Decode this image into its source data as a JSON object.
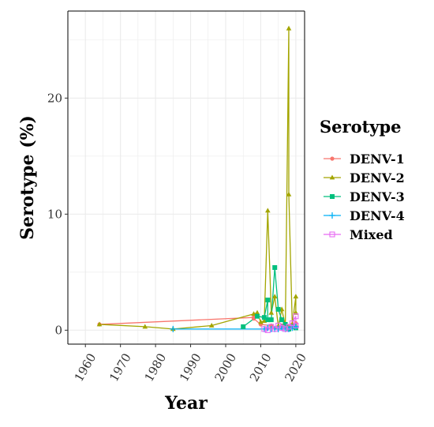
{
  "chart_data": {
    "type": "line",
    "xlabel": "Year",
    "ylabel": "Serotype (%)",
    "xlim": [
      1955,
      2022.5
    ],
    "ylim": [
      -1.2,
      27.5
    ],
    "x_ticks": [
      1960,
      1970,
      1980,
      1990,
      2000,
      2010,
      2020
    ],
    "y_ticks": [
      0,
      10,
      20
    ],
    "grid": true,
    "legend": {
      "title": "Serotype",
      "position": "right"
    },
    "series": [
      {
        "name": "DENV-1",
        "color": "#F8766D",
        "marker": "circle",
        "points": [
          [
            1964,
            0.5
          ],
          [
            2008,
            1.1
          ],
          [
            2008,
            1.0
          ],
          [
            2010,
            0.5
          ],
          [
            2013,
            0.4
          ],
          [
            2014,
            0.2
          ],
          [
            2015,
            0.3
          ],
          [
            2016,
            0.4
          ],
          [
            2017,
            0.3
          ],
          [
            2018,
            0.3
          ],
          [
            2019,
            0.5
          ],
          [
            2020,
            0.6
          ]
        ]
      },
      {
        "name": "DENV-2",
        "color": "#A3A500",
        "marker": "triangle",
        "points": [
          [
            1964,
            0.5
          ],
          [
            1977,
            0.3
          ],
          [
            1985,
            0.1
          ],
          [
            1996,
            0.4
          ],
          [
            2008,
            1.4
          ],
          [
            2009,
            1.5
          ],
          [
            2010,
            0.7
          ],
          [
            2011,
            0.8
          ],
          [
            2012,
            10.3
          ],
          [
            2013,
            1.5
          ],
          [
            2014,
            2.9
          ],
          [
            2015,
            0.3
          ],
          [
            2016,
            1.8
          ],
          [
            2017,
            0.4
          ],
          [
            2018,
            26.0
          ],
          [
            2018,
            11.7
          ],
          [
            2019,
            0.5
          ],
          [
            2020,
            2.9
          ],
          [
            2020,
            1.5
          ]
        ]
      },
      {
        "name": "DENV-3",
        "color": "#00BF7D",
        "marker": "square",
        "points": [
          [
            2005,
            0.3
          ],
          [
            2009,
            1.2
          ],
          [
            2011,
            1.1
          ],
          [
            2012,
            2.6
          ],
          [
            2012,
            0.9
          ],
          [
            2013,
            0.9
          ],
          [
            2014,
            5.4
          ],
          [
            2015,
            1.8
          ],
          [
            2016,
            0.9
          ],
          [
            2017,
            0.5
          ],
          [
            2018,
            0.1
          ],
          [
            2019,
            0.3
          ],
          [
            2020,
            0.2
          ]
        ]
      },
      {
        "name": "DENV-4",
        "color": "#00B0F6",
        "marker": "plus",
        "points": [
          [
            1985,
            0.1
          ],
          [
            2011,
            0.1
          ],
          [
            2012,
            0.2
          ],
          [
            2013,
            0.1
          ],
          [
            2014,
            0.1
          ],
          [
            2015,
            0.1
          ],
          [
            2016,
            0.2
          ],
          [
            2017,
            0.1
          ],
          [
            2018,
            0.1
          ],
          [
            2019,
            0.2
          ],
          [
            2020,
            0.3
          ]
        ]
      },
      {
        "name": "Mixed",
        "color": "#E76BF3",
        "marker": "square-open",
        "points": [
          [
            2011,
            0.1
          ],
          [
            2012,
            0.0
          ],
          [
            2013,
            0.3
          ],
          [
            2014,
            0.1
          ],
          [
            2015,
            0.4
          ],
          [
            2016,
            0.2
          ],
          [
            2017,
            0.1
          ],
          [
            2018,
            0.3
          ],
          [
            2019,
            0.6
          ],
          [
            2020,
            1.2
          ],
          [
            2020,
            0.4
          ]
        ]
      }
    ]
  }
}
